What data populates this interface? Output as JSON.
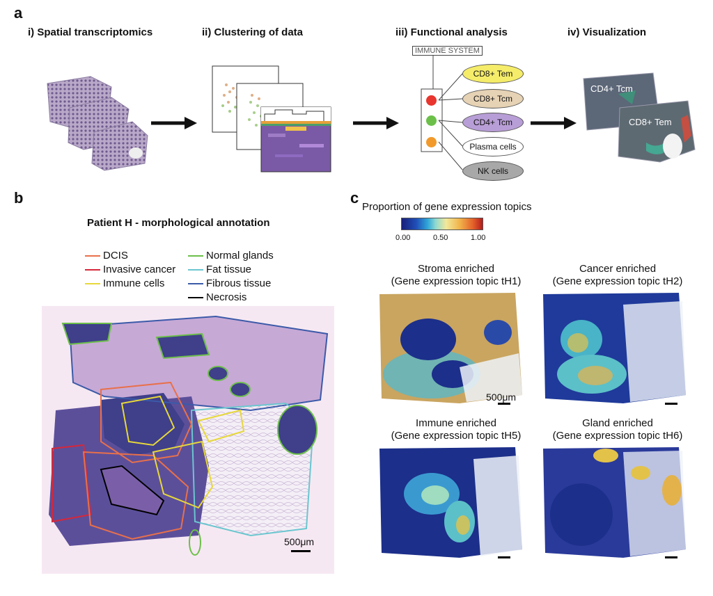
{
  "panel_a": {
    "letter": "a",
    "steps": [
      "i) Spatial transcriptomics",
      "ii) Clustering of data",
      "iii) Functional analysis",
      "iv) Visualization"
    ],
    "immune_system_label": "IMMUNE SYSTEM",
    "cell_types": [
      {
        "label": "CD8+ Tem",
        "color": "#f5ec6a"
      },
      {
        "label": "CD8+ Tcm",
        "color": "#e6d2b4"
      },
      {
        "label": "CD4+ Tcm",
        "color": "#b89ed6"
      },
      {
        "label": "Plasma cells",
        "color": "#ffffff"
      },
      {
        "label": "NK cells",
        "color": "#a8a8a8"
      }
    ],
    "cluster_dot_colors": [
      "#e8352e",
      "#6cc04a",
      "#f19a2b"
    ],
    "viz_labels": [
      "CD4+ Tcm",
      "CD8+ Tem"
    ]
  },
  "panel_b": {
    "letter": "b",
    "title": "Patient H - morphological annotation",
    "legend_left": [
      {
        "label": "DCIS",
        "color": "#e8704a"
      },
      {
        "label": "Invasive cancer",
        "color": "#d6273a"
      },
      {
        "label": "Immune cells",
        "color": "#e7d83a"
      }
    ],
    "legend_right": [
      {
        "label": "Normal glands",
        "color": "#6cbf4a"
      },
      {
        "label": "Fat tissue",
        "color": "#6ac6cf"
      },
      {
        "label": "Fibrous tissue",
        "color": "#3b5aa8"
      },
      {
        "label": "Necrosis",
        "color": "#000000"
      }
    ],
    "scale_label": "500μm"
  },
  "panel_c": {
    "letter": "c",
    "title": "Proportion of gene expression topics",
    "colorbar_ticks": [
      "0.00",
      "0.50",
      "1.00"
    ],
    "maps": [
      {
        "title1": "Stroma enriched",
        "title2": "(Gene expression topic tH1)"
      },
      {
        "title1": "Cancer enriched",
        "title2": "(Gene expression topic tH2)"
      },
      {
        "title1": "Immune enriched",
        "title2": "(Gene expression topic tH5)"
      },
      {
        "title1": "Gland enriched",
        "title2": "(Gene expression topic tH6)"
      }
    ],
    "scale_label": "500μm"
  }
}
